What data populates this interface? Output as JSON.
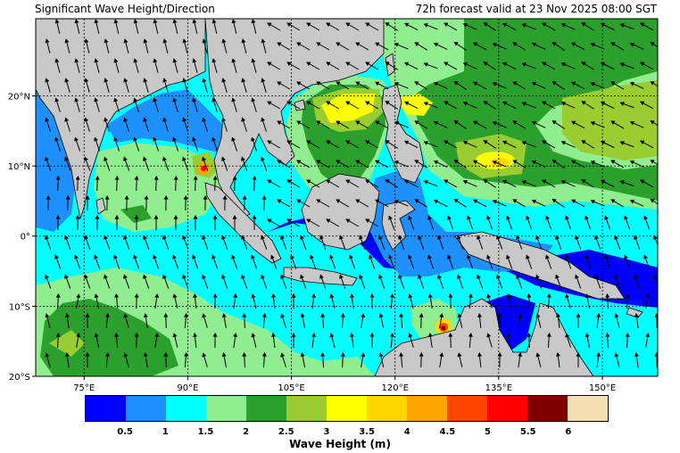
{
  "header": {
    "title": "Significant Wave Height/Direction",
    "valid": "72h forecast valid at 23 Nov 2025 08:00 SGT"
  },
  "map": {
    "lon_range": [
      68,
      158
    ],
    "lat_range": [
      -20,
      31
    ],
    "lat_ticks": [
      {
        "value": 20,
        "label": "20°N"
      },
      {
        "value": 10,
        "label": "10°N"
      },
      {
        "value": 0,
        "label": "0°"
      },
      {
        "value": -10,
        "label": "10°S"
      },
      {
        "value": -20,
        "label": "20°S"
      }
    ],
    "lon_ticks": [
      {
        "value": 75,
        "label": "75°E"
      },
      {
        "value": 90,
        "label": "90°E"
      },
      {
        "value": 105,
        "label": "105°E"
      },
      {
        "value": 120,
        "label": "120°E"
      },
      {
        "value": 135,
        "label": "135°E"
      },
      {
        "value": 150,
        "label": "150°E"
      }
    ],
    "land_color": "#c8c8c8",
    "gridlines": true
  },
  "colorbar": {
    "title": "Wave Height (m)",
    "colors": [
      "#0000ff",
      "#1e90ff",
      "#00ffff",
      "#90ee90",
      "#2ca02c",
      "#9acd32",
      "#ffff00",
      "#ffd700",
      "#ffa500",
      "#ff4500",
      "#ff0000",
      "#800000",
      "#f5deb3"
    ],
    "labels": [
      "0.5",
      "1",
      "1.5",
      "2",
      "2.5",
      "3",
      "3.5",
      "4",
      "4.5",
      "5",
      "5.5",
      "6"
    ]
  }
}
